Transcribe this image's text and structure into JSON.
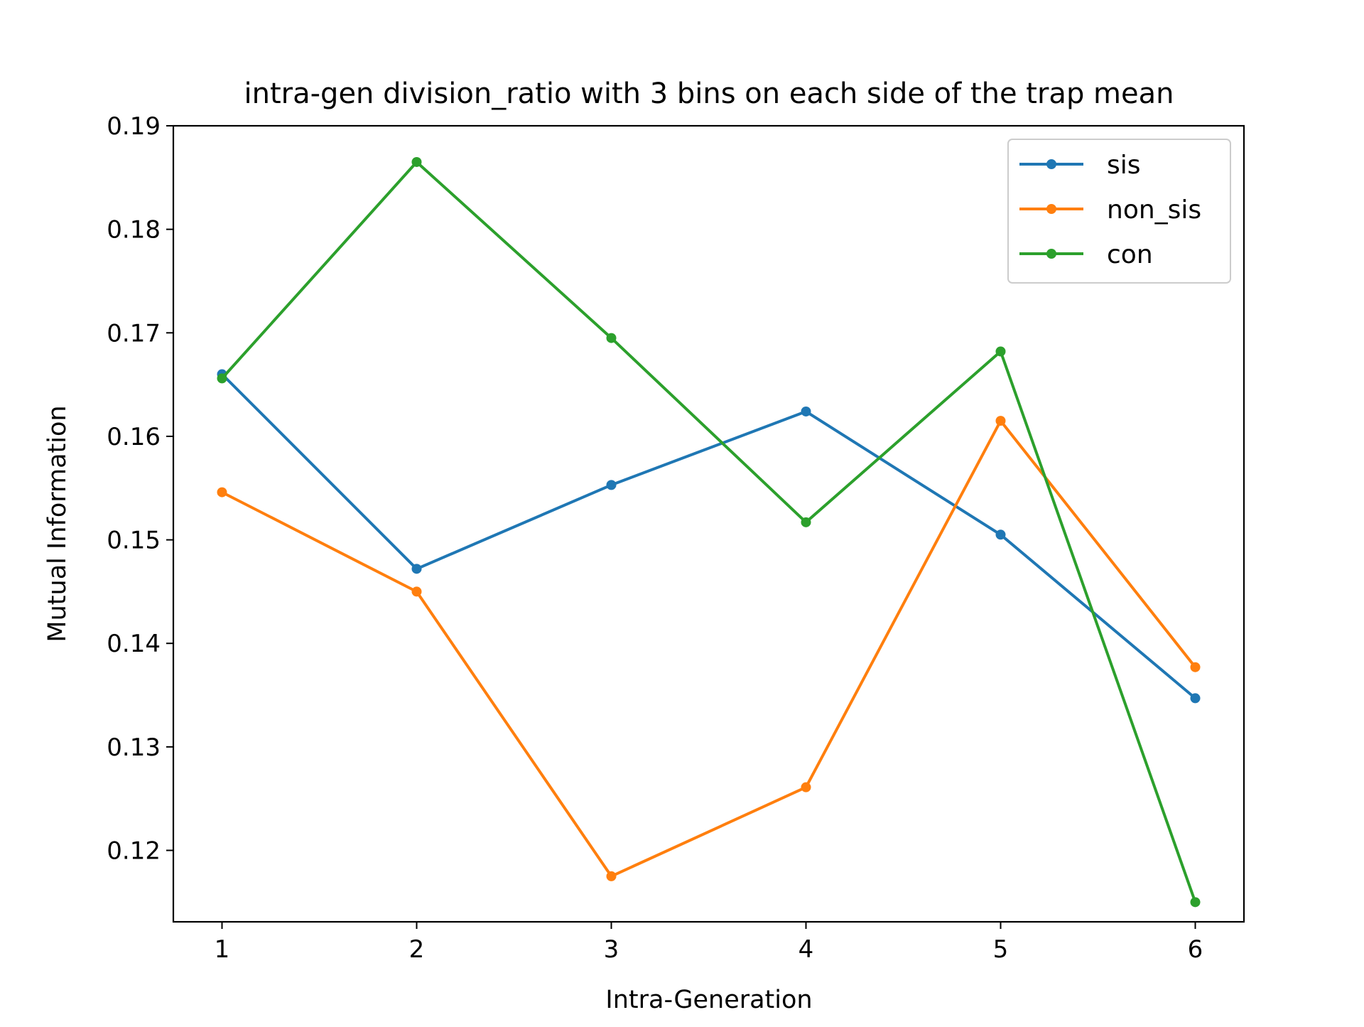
{
  "chart_data": {
    "type": "line",
    "title": "intra-gen division_ratio with 3 bins on each side of the trap mean",
    "xlabel": "Intra-Generation",
    "ylabel": "Mutual Information",
    "x": [
      1,
      2,
      3,
      4,
      5,
      6
    ],
    "xlim": [
      0.75,
      6.25
    ],
    "ylim": [
      0.1131,
      0.19
    ],
    "xticks": [
      1,
      2,
      3,
      4,
      5,
      6
    ],
    "yticks": [
      0.12,
      0.13,
      0.14,
      0.15,
      0.16,
      0.17,
      0.18,
      0.19
    ],
    "grid": false,
    "legend_position": "upper right",
    "series": [
      {
        "name": "sis",
        "color": "#1f77b4",
        "values": [
          0.166,
          0.1472,
          0.1553,
          0.1624,
          0.1505,
          0.1347
        ]
      },
      {
        "name": "non_sis",
        "color": "#ff7f0e",
        "values": [
          0.1546,
          0.145,
          0.1175,
          0.1261,
          0.1615,
          0.1377
        ]
      },
      {
        "name": "con",
        "color": "#2ca02c",
        "values": [
          0.1656,
          0.1865,
          0.1695,
          0.1517,
          0.1682,
          0.115
        ]
      }
    ]
  }
}
